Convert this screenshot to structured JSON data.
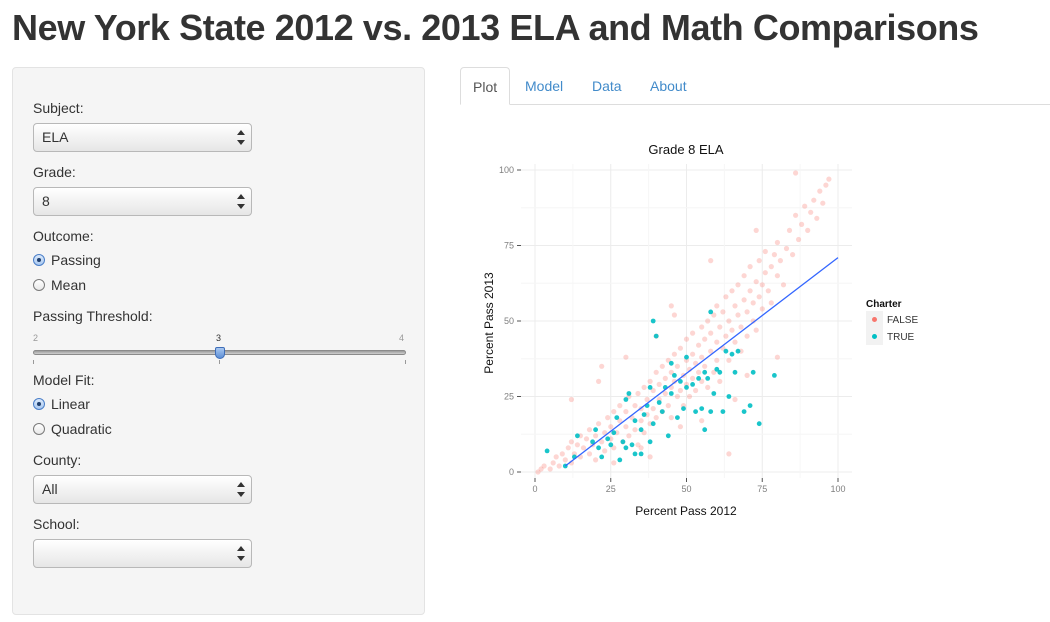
{
  "page": {
    "title": "New York State 2012 vs. 2013 ELA and Math Comparisons"
  },
  "sidebar": {
    "subject": {
      "label": "Subject:",
      "value": "ELA"
    },
    "grade": {
      "label": "Grade:",
      "value": "8"
    },
    "outcome": {
      "label": "Outcome:",
      "options": [
        "Passing",
        "Mean"
      ],
      "selected": "Passing"
    },
    "threshold": {
      "label": "Passing Threshold:",
      "min": "2",
      "max": "4",
      "value": "3",
      "value_num": 3,
      "min_num": 2,
      "max_num": 4
    },
    "model_fit": {
      "label": "Model Fit:",
      "options": [
        "Linear",
        "Quadratic"
      ],
      "selected": "Linear"
    },
    "county": {
      "label": "County:",
      "value": "All"
    },
    "school": {
      "label": "School:",
      "value": ""
    }
  },
  "tabs": [
    {
      "label": "Plot",
      "active": true
    },
    {
      "label": "Model",
      "active": false
    },
    {
      "label": "Data",
      "active": false
    },
    {
      "label": "About",
      "active": false
    }
  ],
  "colors": {
    "false_series": "#f8766d",
    "true_series": "#00bfc4",
    "fit_line": "#3366ff",
    "link": "#428bca"
  },
  "chart_data": {
    "type": "scatter",
    "title": "Grade 8 ELA",
    "xlabel": "Percent Pass 2012",
    "ylabel": "Percent Pass 2013",
    "xlim": [
      0,
      100
    ],
    "ylim": [
      0,
      100
    ],
    "xticks": [
      "0",
      "25",
      "50",
      "75",
      "100"
    ],
    "yticks": [
      "0",
      "25",
      "50",
      "75",
      "100"
    ],
    "grid": true,
    "legend": {
      "title": "Charter",
      "position": "right",
      "entries": [
        "FALSE",
        "TRUE"
      ]
    },
    "series": [
      {
        "name": "FALSE",
        "points": [
          [
            1,
            0
          ],
          [
            2,
            1
          ],
          [
            3,
            2
          ],
          [
            5,
            1
          ],
          [
            6,
            3
          ],
          [
            7,
            5
          ],
          [
            8,
            2
          ],
          [
            9,
            6
          ],
          [
            10,
            4
          ],
          [
            11,
            8
          ],
          [
            12,
            3
          ],
          [
            12,
            10
          ],
          [
            13,
            6
          ],
          [
            14,
            9
          ],
          [
            15,
            5
          ],
          [
            15,
            12
          ],
          [
            16,
            8
          ],
          [
            17,
            11
          ],
          [
            18,
            6
          ],
          [
            18,
            14
          ],
          [
            19,
            9
          ],
          [
            20,
            12
          ],
          [
            20,
            4
          ],
          [
            21,
            16
          ],
          [
            22,
            10
          ],
          [
            23,
            13
          ],
          [
            23,
            7
          ],
          [
            24,
            18
          ],
          [
            25,
            11
          ],
          [
            25,
            15
          ],
          [
            26,
            20
          ],
          [
            26,
            8
          ],
          [
            27,
            13
          ],
          [
            28,
            17
          ],
          [
            28,
            22
          ],
          [
            29,
            10
          ],
          [
            30,
            15
          ],
          [
            30,
            20
          ],
          [
            31,
            25
          ],
          [
            31,
            12
          ],
          [
            32,
            18
          ],
          [
            33,
            14
          ],
          [
            33,
            22
          ],
          [
            34,
            26
          ],
          [
            34,
            9
          ],
          [
            35,
            17
          ],
          [
            35,
            21
          ],
          [
            36,
            28
          ],
          [
            36,
            13
          ],
          [
            37,
            19
          ],
          [
            37,
            24
          ],
          [
            38,
            30
          ],
          [
            38,
            16
          ],
          [
            39,
            21
          ],
          [
            39,
            27
          ],
          [
            40,
            33
          ],
          [
            40,
            18
          ],
          [
            41,
            24
          ],
          [
            41,
            29
          ],
          [
            42,
            35
          ],
          [
            42,
            20
          ],
          [
            43,
            26
          ],
          [
            43,
            31
          ],
          [
            44,
            22
          ],
          [
            44,
            37
          ],
          [
            45,
            28
          ],
          [
            45,
            33
          ],
          [
            45,
            18
          ],
          [
            46,
            30
          ],
          [
            46,
            39
          ],
          [
            47,
            25
          ],
          [
            47,
            35
          ],
          [
            48,
            27
          ],
          [
            48,
            41
          ],
          [
            49,
            32
          ],
          [
            49,
            22
          ],
          [
            50,
            29
          ],
          [
            50,
            37
          ],
          [
            50,
            44
          ],
          [
            51,
            34
          ],
          [
            51,
            25
          ],
          [
            52,
            31
          ],
          [
            52,
            39
          ],
          [
            52,
            46
          ],
          [
            53,
            27
          ],
          [
            53,
            36
          ],
          [
            54,
            33
          ],
          [
            54,
            42
          ],
          [
            55,
            48
          ],
          [
            55,
            30
          ],
          [
            55,
            38
          ],
          [
            56,
            35
          ],
          [
            56,
            44
          ],
          [
            57,
            50
          ],
          [
            57,
            28
          ],
          [
            58,
            40
          ],
          [
            58,
            46
          ],
          [
            59,
            33
          ],
          [
            59,
            52
          ],
          [
            60,
            37
          ],
          [
            60,
            43
          ],
          [
            60,
            55
          ],
          [
            61,
            48
          ],
          [
            61,
            30
          ],
          [
            62,
            41
          ],
          [
            62,
            53
          ],
          [
            63,
            45
          ],
          [
            63,
            58
          ],
          [
            64,
            37
          ],
          [
            64,
            50
          ],
          [
            65,
            47
          ],
          [
            65,
            60
          ],
          [
            66,
            43
          ],
          [
            66,
            55
          ],
          [
            67,
            52
          ],
          [
            67,
            62
          ],
          [
            68,
            48
          ],
          [
            68,
            40
          ],
          [
            69,
            57
          ],
          [
            69,
            65
          ],
          [
            70,
            53
          ],
          [
            70,
            45
          ],
          [
            71,
            60
          ],
          [
            71,
            68
          ],
          [
            72,
            56
          ],
          [
            72,
            50
          ],
          [
            73,
            63
          ],
          [
            73,
            47
          ],
          [
            74,
            58
          ],
          [
            74,
            70
          ],
          [
            75,
            62
          ],
          [
            75,
            54
          ],
          [
            76,
            66
          ],
          [
            76,
            73
          ],
          [
            77,
            60
          ],
          [
            78,
            68
          ],
          [
            78,
            56
          ],
          [
            79,
            72
          ],
          [
            80,
            65
          ],
          [
            80,
            76
          ],
          [
            81,
            70
          ],
          [
            82,
            62
          ],
          [
            83,
            74
          ],
          [
            84,
            80
          ],
          [
            85,
            72
          ],
          [
            86,
            85
          ],
          [
            86,
            99
          ],
          [
            87,
            77
          ],
          [
            88,
            82
          ],
          [
            89,
            88
          ],
          [
            90,
            80
          ],
          [
            91,
            86
          ],
          [
            92,
            90
          ],
          [
            93,
            84
          ],
          [
            94,
            93
          ],
          [
            95,
            89
          ],
          [
            96,
            95
          ],
          [
            97,
            97
          ],
          [
            22,
            35
          ],
          [
            45,
            55
          ],
          [
            26,
            3
          ],
          [
            38,
            5
          ],
          [
            64,
            6
          ],
          [
            80,
            38
          ],
          [
            12,
            24
          ],
          [
            21,
            30
          ],
          [
            55,
            17
          ],
          [
            66,
            24
          ],
          [
            70,
            32
          ],
          [
            48,
            15
          ],
          [
            35,
            8
          ],
          [
            73,
            80
          ],
          [
            58,
            70
          ],
          [
            46,
            52
          ],
          [
            30,
            38
          ],
          [
            40,
            45
          ]
        ]
      },
      {
        "name": "TRUE",
        "points": [
          [
            10,
            2
          ],
          [
            4,
            7
          ],
          [
            13,
            5
          ],
          [
            14,
            12
          ],
          [
            19,
            10
          ],
          [
            20,
            14
          ],
          [
            21,
            8
          ],
          [
            22,
            5
          ],
          [
            24,
            11
          ],
          [
            25,
            9
          ],
          [
            26,
            13
          ],
          [
            27,
            18
          ],
          [
            28,
            4
          ],
          [
            29,
            10
          ],
          [
            30,
            24
          ],
          [
            30,
            8
          ],
          [
            31,
            26
          ],
          [
            32,
            9
          ],
          [
            33,
            6
          ],
          [
            33,
            17
          ],
          [
            35,
            6
          ],
          [
            35,
            14
          ],
          [
            36,
            19
          ],
          [
            37,
            22
          ],
          [
            38,
            28
          ],
          [
            38,
            10
          ],
          [
            39,
            50
          ],
          [
            39,
            16
          ],
          [
            40,
            45
          ],
          [
            41,
            23
          ],
          [
            42,
            20
          ],
          [
            43,
            28
          ],
          [
            44,
            12
          ],
          [
            45,
            26
          ],
          [
            45,
            36
          ],
          [
            46,
            32
          ],
          [
            47,
            18
          ],
          [
            48,
            30
          ],
          [
            49,
            21
          ],
          [
            50,
            28
          ],
          [
            50,
            38
          ],
          [
            52,
            29
          ],
          [
            53,
            20
          ],
          [
            54,
            31
          ],
          [
            55,
            21
          ],
          [
            56,
            33
          ],
          [
            57,
            31
          ],
          [
            58,
            20
          ],
          [
            58,
            53
          ],
          [
            59,
            26
          ],
          [
            60,
            34
          ],
          [
            61,
            33
          ],
          [
            62,
            20
          ],
          [
            63,
            40
          ],
          [
            64,
            25
          ],
          [
            65,
            39
          ],
          [
            66,
            33
          ],
          [
            67,
            40
          ],
          [
            69,
            20
          ],
          [
            71,
            22
          ],
          [
            72,
            33
          ],
          [
            74,
            16
          ],
          [
            79,
            32
          ],
          [
            56,
            14
          ]
        ]
      }
    ],
    "fit_line": [
      [
        10,
        2
      ],
      [
        100,
        71
      ]
    ]
  }
}
